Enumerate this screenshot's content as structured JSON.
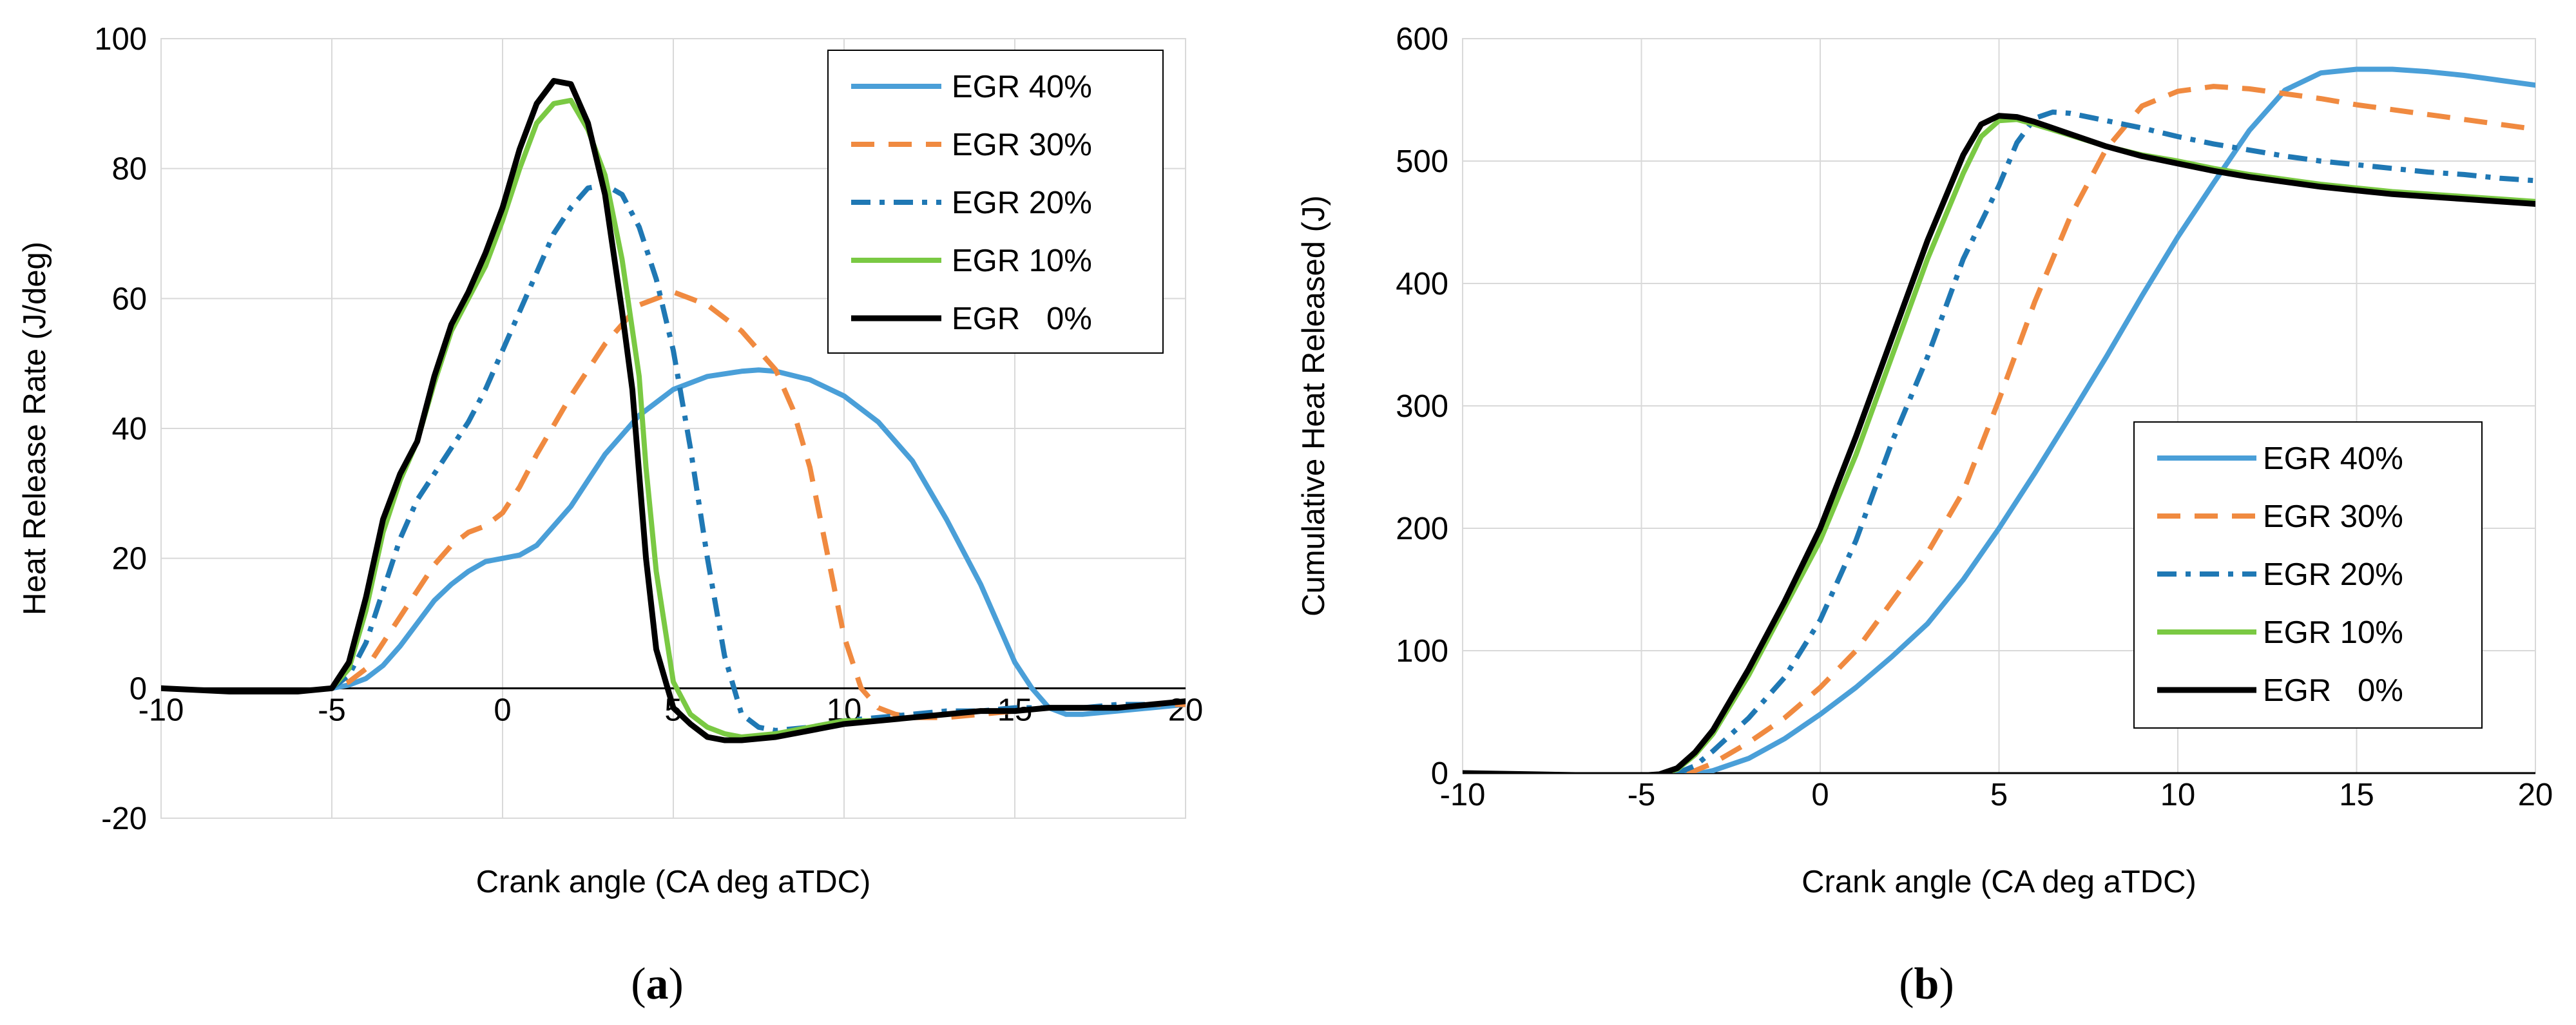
{
  "chart_data": [
    {
      "panel": "a",
      "type": "line",
      "title": "",
      "caption": "(a)",
      "caption_letter": "a",
      "xlabel": "Crank angle  (CA deg aTDC)",
      "ylabel": "Heat Release Rate  (J/deg)",
      "xlim": [
        -10,
        20
      ],
      "ylim": [
        -20,
        100
      ],
      "xticks": [
        -10,
        -5,
        0,
        5,
        10,
        15,
        20
      ],
      "yticks": [
        -20,
        0,
        20,
        40,
        60,
        80,
        100
      ],
      "grid": true,
      "legend": "top-right",
      "series": [
        {
          "name": "EGR 40%",
          "color": "#4a9fd8",
          "dash": "solid",
          "x": [
            -10,
            -8,
            -6,
            -5,
            -4.5,
            -4,
            -3.5,
            -3,
            -2.5,
            -2,
            -1.5,
            -1,
            -0.5,
            0,
            0.5,
            1,
            2,
            3,
            4,
            5,
            6,
            7,
            7.5,
            8,
            9,
            10,
            11,
            12,
            13,
            14,
            14.5,
            15,
            15.5,
            16,
            16.5,
            17,
            18,
            19,
            20
          ],
          "y": [
            0,
            -0.5,
            -0.5,
            0,
            0.5,
            1.5,
            3.5,
            6.5,
            10,
            13.5,
            16,
            18,
            19.5,
            20,
            20.5,
            22,
            28,
            36,
            42,
            46,
            48,
            48.8,
            49,
            48.8,
            47.5,
            45,
            41,
            35,
            26,
            16,
            10,
            4,
            0,
            -3,
            -4,
            -4,
            -3.5,
            -3,
            -2.5
          ]
        },
        {
          "name": "EGR 30%",
          "color": "#f08a40",
          "dash": "dashed",
          "x": [
            -10,
            -8,
            -6,
            -5,
            -4.5,
            -4,
            -3.5,
            -3,
            -2.5,
            -2,
            -1.5,
            -1,
            -0.5,
            0,
            0.5,
            1,
            2,
            3,
            4,
            5,
            6,
            7,
            7.5,
            8,
            8.5,
            9,
            9.5,
            10,
            10.5,
            11,
            11.5,
            12,
            13,
            14,
            15,
            16,
            17,
            18,
            19,
            20
          ],
          "y": [
            0,
            -0.5,
            -0.5,
            0,
            1,
            3,
            7,
            11,
            15,
            19,
            22,
            24,
            25,
            27,
            31,
            36,
            45,
            53,
            59,
            61,
            59,
            55,
            52,
            49,
            43,
            34,
            21,
            8,
            0,
            -3,
            -4,
            -4.5,
            -4.5,
            -4,
            -3.5,
            -3,
            -3,
            -3,
            -2.5,
            -2.5
          ]
        },
        {
          "name": "EGR 20%",
          "color": "#1f78b4",
          "dash": "dashdot",
          "x": [
            -10,
            -8,
            -6,
            -5,
            -4.5,
            -4,
            -3.5,
            -3,
            -2.5,
            -2,
            -1.5,
            -1,
            -0.5,
            0,
            0.5,
            1,
            1.5,
            2,
            2.5,
            3,
            3.5,
            4,
            4.5,
            5,
            5.5,
            6,
            6.5,
            7,
            7.5,
            8,
            9,
            10,
            11,
            12,
            13,
            14,
            15,
            16,
            17,
            18,
            19,
            20
          ],
          "y": [
            0,
            -0.5,
            -0.5,
            0,
            2,
            7,
            15,
            23,
            29,
            33,
            37,
            41,
            46,
            52,
            58,
            64,
            70,
            74,
            77,
            77.5,
            76,
            71,
            63,
            52,
            37,
            20,
            5,
            -4,
            -6,
            -6.5,
            -6,
            -5,
            -4.5,
            -4,
            -3.5,
            -3.5,
            -3,
            -3,
            -3,
            -2.5,
            -2.5,
            -2
          ]
        },
        {
          "name": "EGR 10%",
          "color": "#7ac943",
          "dash": "solid",
          "x": [
            -10,
            -8,
            -6,
            -5,
            -4.5,
            -4,
            -3.5,
            -3,
            -2.5,
            -2,
            -1.5,
            -1,
            -0.5,
            0,
            0.5,
            1,
            1.5,
            2,
            2.5,
            3,
            3.5,
            4,
            4.2,
            4.5,
            5,
            5.5,
            6,
            6.5,
            7,
            8,
            9,
            10,
            11,
            12,
            13,
            14,
            15,
            16,
            17,
            18,
            19,
            20
          ],
          "y": [
            0,
            -0.5,
            -0.5,
            0,
            3,
            12,
            24,
            32,
            38,
            47,
            55,
            60,
            65,
            72,
            80,
            87,
            90,
            90.5,
            86,
            79,
            66,
            48,
            34,
            18,
            1,
            -4,
            -6,
            -7,
            -7.5,
            -7,
            -6,
            -5,
            -5,
            -4.5,
            -4,
            -3.5,
            -3.5,
            -3,
            -3,
            -3,
            -2.5,
            -2
          ]
        },
        {
          "name": "EGR   0%",
          "color": "#000000",
          "dash": "solid",
          "x": [
            -10,
            -8,
            -6,
            -5,
            -4.5,
            -4,
            -3.5,
            -3,
            -2.5,
            -2,
            -1.5,
            -1,
            -0.5,
            0,
            0.5,
            1,
            1.5,
            2,
            2.5,
            3,
            3.5,
            3.8,
            4.2,
            4.5,
            5,
            5.5,
            6,
            6.5,
            7,
            8,
            9,
            10,
            11,
            12,
            13,
            14,
            15,
            16,
            17,
            18,
            19,
            20
          ],
          "y": [
            0,
            -0.5,
            -0.5,
            0,
            4,
            14,
            26,
            33,
            38,
            48,
            56,
            61,
            67,
            74,
            83,
            90,
            93.5,
            93,
            87,
            76,
            58,
            46,
            20,
            6,
            -3,
            -5.5,
            -7.5,
            -8,
            -8,
            -7.5,
            -6.5,
            -5.5,
            -5,
            -4.5,
            -4,
            -3.5,
            -3.5,
            -3,
            -3,
            -3,
            -2.5,
            -2
          ]
        }
      ]
    },
    {
      "panel": "b",
      "type": "line",
      "title": "",
      "caption": "(b)",
      "caption_letter": "b",
      "xlabel": "Crank angle  (CA deg aTDC)",
      "ylabel": "Cumulative  Heat Released  (J)",
      "xlim": [
        -10,
        20
      ],
      "ylim": [
        0,
        600
      ],
      "xticks": [
        -10,
        -5,
        0,
        5,
        10,
        15,
        20
      ],
      "yticks": [
        0,
        100,
        200,
        300,
        400,
        500,
        600
      ],
      "grid": true,
      "legend": "right",
      "series": [
        {
          "name": "EGR 40%",
          "color": "#4a9fd8",
          "dash": "solid",
          "x": [
            -10,
            -8,
            -6,
            -5,
            -4,
            -3.5,
            -3,
            -2,
            -1,
            0,
            1,
            2,
            3,
            4,
            5,
            6,
            7,
            8,
            9,
            10,
            11,
            12,
            13,
            14,
            15,
            16,
            17,
            18,
            19,
            20
          ],
          "y": [
            0,
            -1,
            -2,
            -2,
            -2,
            -1,
            2,
            12,
            28,
            48,
            70,
            95,
            122,
            158,
            200,
            245,
            292,
            340,
            390,
            438,
            482,
            525,
            558,
            572,
            575,
            575,
            573,
            570,
            566,
            562
          ]
        },
        {
          "name": "EGR 30%",
          "color": "#f08a40",
          "dash": "dashed",
          "x": [
            -10,
            -8,
            -6,
            -5,
            -4,
            -3.5,
            -3,
            -2,
            -1,
            0,
            1,
            2,
            3,
            4,
            5,
            6,
            7,
            8,
            9,
            10,
            11,
            12,
            13,
            14,
            15,
            16,
            17,
            18,
            19,
            20
          ],
          "y": [
            0,
            -1,
            -2,
            -2,
            -1,
            2,
            8,
            25,
            45,
            70,
            100,
            140,
            180,
            230,
            305,
            385,
            455,
            510,
            545,
            557,
            561,
            559,
            555,
            551,
            546,
            542,
            538,
            534,
            530,
            526
          ]
        },
        {
          "name": "EGR 20%",
          "color": "#1f78b4",
          "dash": "dashdot",
          "x": [
            -10,
            -8,
            -6,
            -5,
            -4,
            -3.5,
            -3,
            -2,
            -1,
            0,
            1,
            2,
            3,
            4,
            5,
            5.5,
            6,
            6.5,
            7,
            8,
            9,
            10,
            11,
            12,
            13,
            14,
            15,
            16,
            17,
            18,
            19,
            20
          ],
          "y": [
            0,
            -1,
            -2,
            -2,
            0,
            6,
            18,
            45,
            78,
            125,
            190,
            270,
            340,
            420,
            480,
            515,
            535,
            540,
            539,
            533,
            527,
            520,
            514,
            509,
            504,
            500,
            497,
            494,
            491,
            489,
            486,
            484
          ]
        },
        {
          "name": "EGR 10%",
          "color": "#7ac943",
          "dash": "solid",
          "x": [
            -10,
            -8,
            -6,
            -5,
            -4.5,
            -4,
            -3.5,
            -3,
            -2,
            -1,
            0,
            1,
            2,
            3,
            4,
            4.5,
            5,
            5.5,
            6,
            7,
            8,
            9,
            10,
            11,
            12,
            13,
            14,
            15,
            16,
            17,
            18,
            19,
            20
          ],
          "y": [
            0,
            -1,
            -2,
            -2,
            -1,
            3,
            15,
            32,
            80,
            135,
            190,
            260,
            340,
            420,
            490,
            520,
            533,
            534,
            530,
            521,
            512,
            505,
            500,
            494,
            489,
            485,
            481,
            478,
            475,
            473,
            471,
            469,
            467
          ]
        },
        {
          "name": "EGR   0%",
          "color": "#000000",
          "dash": "solid",
          "x": [
            -10,
            -8,
            -6,
            -5,
            -4.5,
            -4,
            -3.5,
            -3,
            -2,
            -1,
            0,
            1,
            2,
            3,
            4,
            4.5,
            5,
            5.5,
            6,
            7,
            8,
            9,
            10,
            11,
            12,
            13,
            14,
            15,
            16,
            17,
            18,
            19,
            20
          ],
          "y": [
            0,
            -1,
            -2,
            -2,
            -1,
            4,
            17,
            35,
            85,
            140,
            200,
            275,
            355,
            435,
            505,
            530,
            537,
            536,
            532,
            522,
            512,
            504,
            498,
            492,
            487,
            483,
            479,
            476,
            473,
            471,
            469,
            467,
            465
          ]
        }
      ]
    }
  ]
}
